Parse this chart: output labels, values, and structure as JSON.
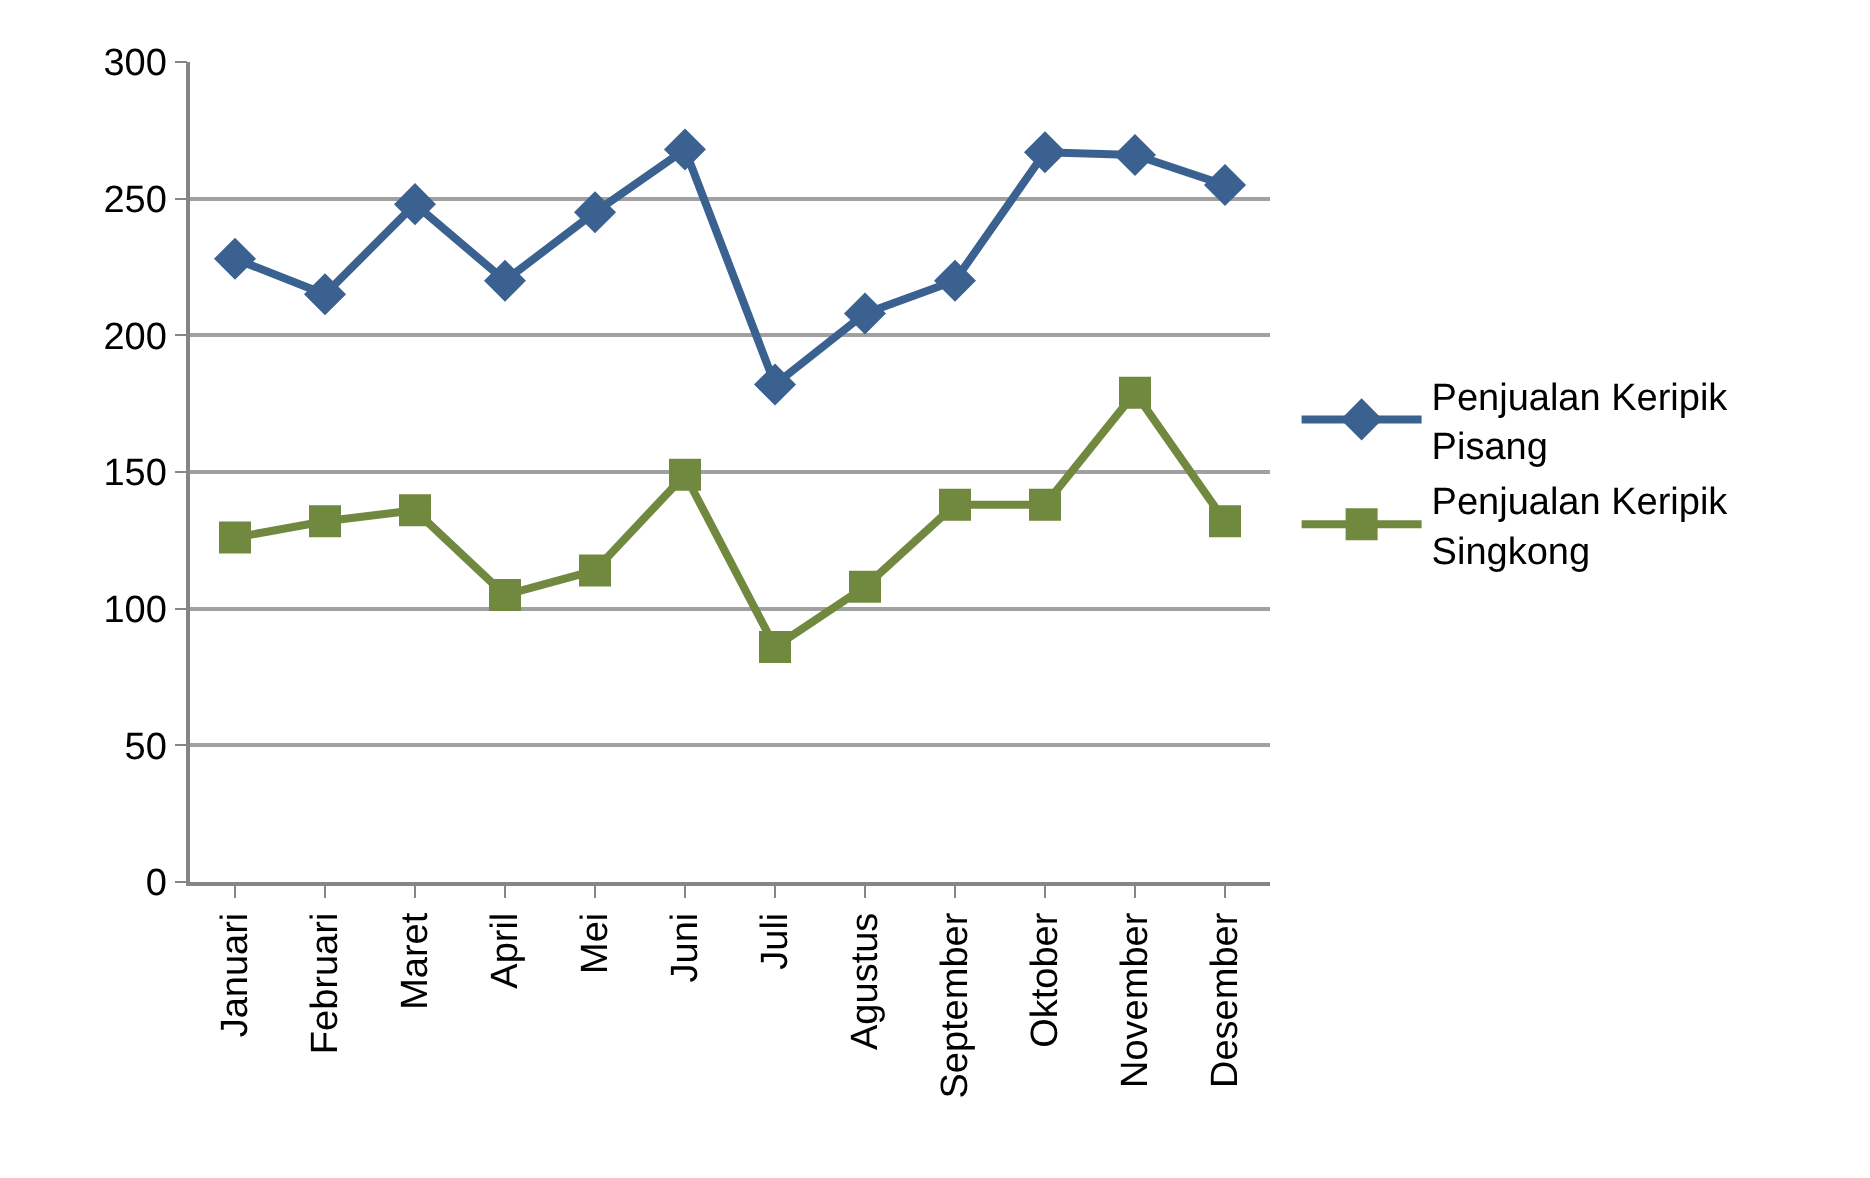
{
  "chart_data": {
    "type": "line",
    "categories": [
      "Januari",
      "Februari",
      "Maret",
      "April",
      "Mei",
      "Juni",
      "Juli",
      "Agustus",
      "September",
      "Oktober",
      "November",
      "Desember"
    ],
    "series": [
      {
        "name": "Penjualan Keripik Pisang",
        "color": "#3a6190",
        "marker": "diamond",
        "values": [
          228,
          215,
          248,
          220,
          245,
          268,
          182,
          208,
          220,
          267,
          266,
          255
        ]
      },
      {
        "name": "Penjualan Keripik Singkong",
        "color": "#71893f",
        "marker": "square",
        "values": [
          126,
          132,
          136,
          105,
          114,
          149,
          86,
          108,
          138,
          138,
          179,
          132
        ]
      }
    ],
    "ylim": [
      0,
      300
    ],
    "yticks": [
      0,
      50,
      100,
      150,
      200,
      250,
      300
    ],
    "grid": "y",
    "legend": "right",
    "line_style": "solid"
  }
}
